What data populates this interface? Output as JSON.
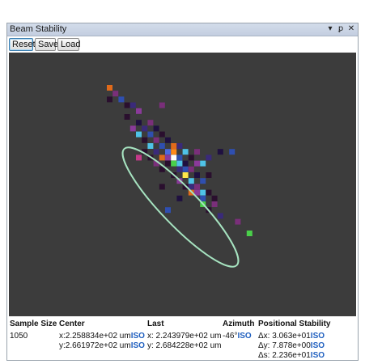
{
  "window": {
    "title": "Beam Stability",
    "controls": {
      "dropdown": "▾",
      "pin": "ꝑ",
      "close": "✕"
    }
  },
  "toolbar": {
    "reset_label": "Reset",
    "save_label": "Save",
    "load_label": "Load"
  },
  "plot": {
    "background": "#3c3c3c",
    "ellipse_color": "#a6e3c0",
    "pixels": [
      {
        "c": 0,
        "r": 0,
        "color": "#e06a1a"
      },
      {
        "c": 1,
        "r": 1,
        "color": "#7a2f7a"
      },
      {
        "c": 0,
        "r": 2,
        "color": "#2a0f2e"
      },
      {
        "c": 2,
        "r": 2,
        "color": "#2f4fb0"
      },
      {
        "c": 3,
        "r": 3,
        "color": "#2a0f2e"
      },
      {
        "c": 4,
        "r": 3,
        "color": "#3a2a7a"
      },
      {
        "c": 5,
        "r": 4,
        "color": "#8a3a9a"
      },
      {
        "c": 9,
        "r": 3,
        "color": "#7a2f7a"
      },
      {
        "c": 3,
        "r": 5,
        "color": "#2a0f2e"
      },
      {
        "c": 5,
        "r": 6,
        "color": "#1f1040"
      },
      {
        "c": 7,
        "r": 6,
        "color": "#7a2f7a"
      },
      {
        "c": 4,
        "r": 7,
        "color": "#8a3a9a"
      },
      {
        "c": 6,
        "r": 7,
        "color": "#3a2a7a"
      },
      {
        "c": 8,
        "r": 7,
        "color": "#1f1040"
      },
      {
        "c": 5,
        "r": 8,
        "color": "#4fc3e8"
      },
      {
        "c": 7,
        "r": 8,
        "color": "#2f4fb0"
      },
      {
        "c": 9,
        "r": 8,
        "color": "#2a0f2e"
      },
      {
        "c": 6,
        "r": 9,
        "color": "#2a0f2e"
      },
      {
        "c": 8,
        "r": 9,
        "color": "#7a2f7a"
      },
      {
        "c": 10,
        "r": 9,
        "color": "#1f1040"
      },
      {
        "c": 7,
        "r": 10,
        "color": "#4fc3e8"
      },
      {
        "c": 9,
        "r": 10,
        "color": "#2f4fb0"
      },
      {
        "c": 11,
        "r": 10,
        "color": "#e06a1a"
      },
      {
        "c": 12,
        "r": 10,
        "color": "#3a2a7a"
      },
      {
        "c": 6,
        "r": 11,
        "color": "#2a0f2e"
      },
      {
        "c": 8,
        "r": 11,
        "color": "#3a2a7a"
      },
      {
        "c": 10,
        "r": 11,
        "color": "#4a6ae0"
      },
      {
        "c": 11,
        "r": 11,
        "color": "#ff8a1a"
      },
      {
        "c": 13,
        "r": 11,
        "color": "#4fc3e8"
      },
      {
        "c": 15,
        "r": 11,
        "color": "#7a2f7a"
      },
      {
        "c": 19,
        "r": 11,
        "color": "#1f1040"
      },
      {
        "c": 21,
        "r": 11,
        "color": "#2f4fb0"
      },
      {
        "c": 5,
        "r": 12,
        "color": "#c43a8a"
      },
      {
        "c": 7,
        "r": 12,
        "color": "#2a0f2e"
      },
      {
        "c": 9,
        "r": 12,
        "color": "#e06a1a"
      },
      {
        "c": 10,
        "r": 12,
        "color": "#8a3a9a"
      },
      {
        "c": 11,
        "r": 12,
        "color": "#ffffff"
      },
      {
        "c": 12,
        "r": 12,
        "color": "#2f4fb0"
      },
      {
        "c": 14,
        "r": 12,
        "color": "#2a0f2e"
      },
      {
        "c": 17,
        "r": 12,
        "color": "#3a2a7a"
      },
      {
        "c": 8,
        "r": 13,
        "color": "#7a2f7a"
      },
      {
        "c": 10,
        "r": 13,
        "color": "#2a0f2e"
      },
      {
        "c": 11,
        "r": 13,
        "color": "#4ad04a"
      },
      {
        "c": 12,
        "r": 13,
        "color": "#4fc3e8"
      },
      {
        "c": 13,
        "r": 13,
        "color": "#1f1040"
      },
      {
        "c": 15,
        "r": 13,
        "color": "#8a3a9a"
      },
      {
        "c": 16,
        "r": 13,
        "color": "#4fc3e8"
      },
      {
        "c": 9,
        "r": 14,
        "color": "#2a0f2e"
      },
      {
        "c": 12,
        "r": 14,
        "color": "#3a2a7a"
      },
      {
        "c": 13,
        "r": 14,
        "color": "#2f4fb0"
      },
      {
        "c": 14,
        "r": 14,
        "color": "#7a2f7a"
      },
      {
        "c": 11,
        "r": 15,
        "color": "#2a0f2e"
      },
      {
        "c": 13,
        "r": 15,
        "color": "#ffe84a"
      },
      {
        "c": 15,
        "r": 15,
        "color": "#1f1040"
      },
      {
        "c": 17,
        "r": 15,
        "color": "#2a0f2e"
      },
      {
        "c": 12,
        "r": 16,
        "color": "#8a3a9a"
      },
      {
        "c": 14,
        "r": 16,
        "color": "#4fc3e8"
      },
      {
        "c": 16,
        "r": 16,
        "color": "#2f4fb0"
      },
      {
        "c": 9,
        "r": 17,
        "color": "#2a0f2e"
      },
      {
        "c": 13,
        "r": 17,
        "color": "#2a0f2e"
      },
      {
        "c": 14,
        "r": 17,
        "color": "#3a2a7a"
      },
      {
        "c": 15,
        "r": 17,
        "color": "#7a2f7a"
      },
      {
        "c": 14,
        "r": 18,
        "color": "#e06a1a"
      },
      {
        "c": 15,
        "r": 18,
        "color": "#8a3a9a"
      },
      {
        "c": 16,
        "r": 18,
        "color": "#4fc3e8"
      },
      {
        "c": 17,
        "r": 18,
        "color": "#2a0f2e"
      },
      {
        "c": 12,
        "r": 19,
        "color": "#1f1040"
      },
      {
        "c": 16,
        "r": 19,
        "color": "#2f4fb0"
      },
      {
        "c": 18,
        "r": 19,
        "color": "#2a0f2e"
      },
      {
        "c": 16,
        "r": 20,
        "color": "#4ad04a"
      },
      {
        "c": 18,
        "r": 20,
        "color": "#7a2f7a"
      },
      {
        "c": 10,
        "r": 21,
        "color": "#2f4fb0"
      },
      {
        "c": 17,
        "r": 21,
        "color": "#2a0f2e"
      },
      {
        "c": 19,
        "r": 22,
        "color": "#3a2a7a"
      },
      {
        "c": 22,
        "r": 23,
        "color": "#7a2f7a"
      },
      {
        "c": 24,
        "r": 25,
        "color": "#4ad04a"
      }
    ]
  },
  "stats": {
    "headers": {
      "sample_size": "Sample Size",
      "center": "Center",
      "last": "Last",
      "azimuth": "Azimuth",
      "positional_stability": "Positional Stability"
    },
    "sample_size": "1050",
    "center_x": "x:2.258834e+02 um",
    "center_y": "y:2.661972e+02 um",
    "last_x": "x: 2.243979e+02 um",
    "last_y": "y: 2.684228e+02 um",
    "azimuth": "-46°",
    "dx": "Δx: 3.063e+01",
    "dy": "Δy: 7.878e+00",
    "ds": "Δs: 2.236e+01",
    "iso_label": "ISO"
  }
}
